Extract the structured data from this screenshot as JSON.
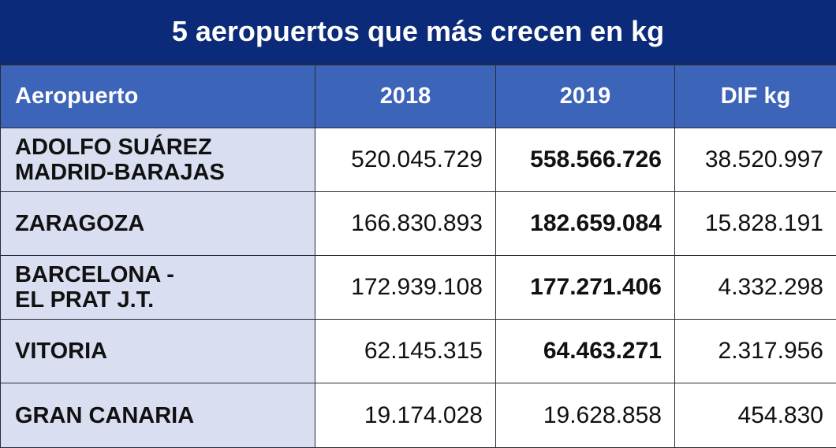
{
  "title": "5 aeropuertos que más crecen en kg",
  "colors": {
    "title_bg": "#0b2a7a",
    "header_bg": "#3c64b8",
    "name_bg": "#d9dff0"
  },
  "headers": {
    "airport": "Aeropuerto",
    "y2018": "2018",
    "y2019": "2019",
    "diff": "DIF kg"
  },
  "rows": [
    {
      "line1": "ADOLFO SUÁREZ",
      "line2": "MADRID-BARAJAS",
      "v2018": "520.045.729",
      "v2019": "558.566.726",
      "diff": "38.520.997",
      "bold2019": true
    },
    {
      "line1": "ZARAGOZA",
      "line2": "",
      "v2018": "166.830.893",
      "v2019": "182.659.084",
      "diff": "15.828.191",
      "bold2019": true
    },
    {
      "line1": "BARCELONA -",
      "line2": "EL PRAT J.T.",
      "v2018": "172.939.108",
      "v2019": "177.271.406",
      "diff": "4.332.298",
      "bold2019": true
    },
    {
      "line1": "VITORIA",
      "line2": "",
      "v2018": "62.145.315",
      "v2019": "64.463.271",
      "diff": "2.317.956",
      "bold2019": true
    },
    {
      "line1": "GRAN CANARIA",
      "line2": "",
      "v2018": "19.174.028",
      "v2019": "19.628.858",
      "diff": "454.830",
      "bold2019": false
    }
  ]
}
